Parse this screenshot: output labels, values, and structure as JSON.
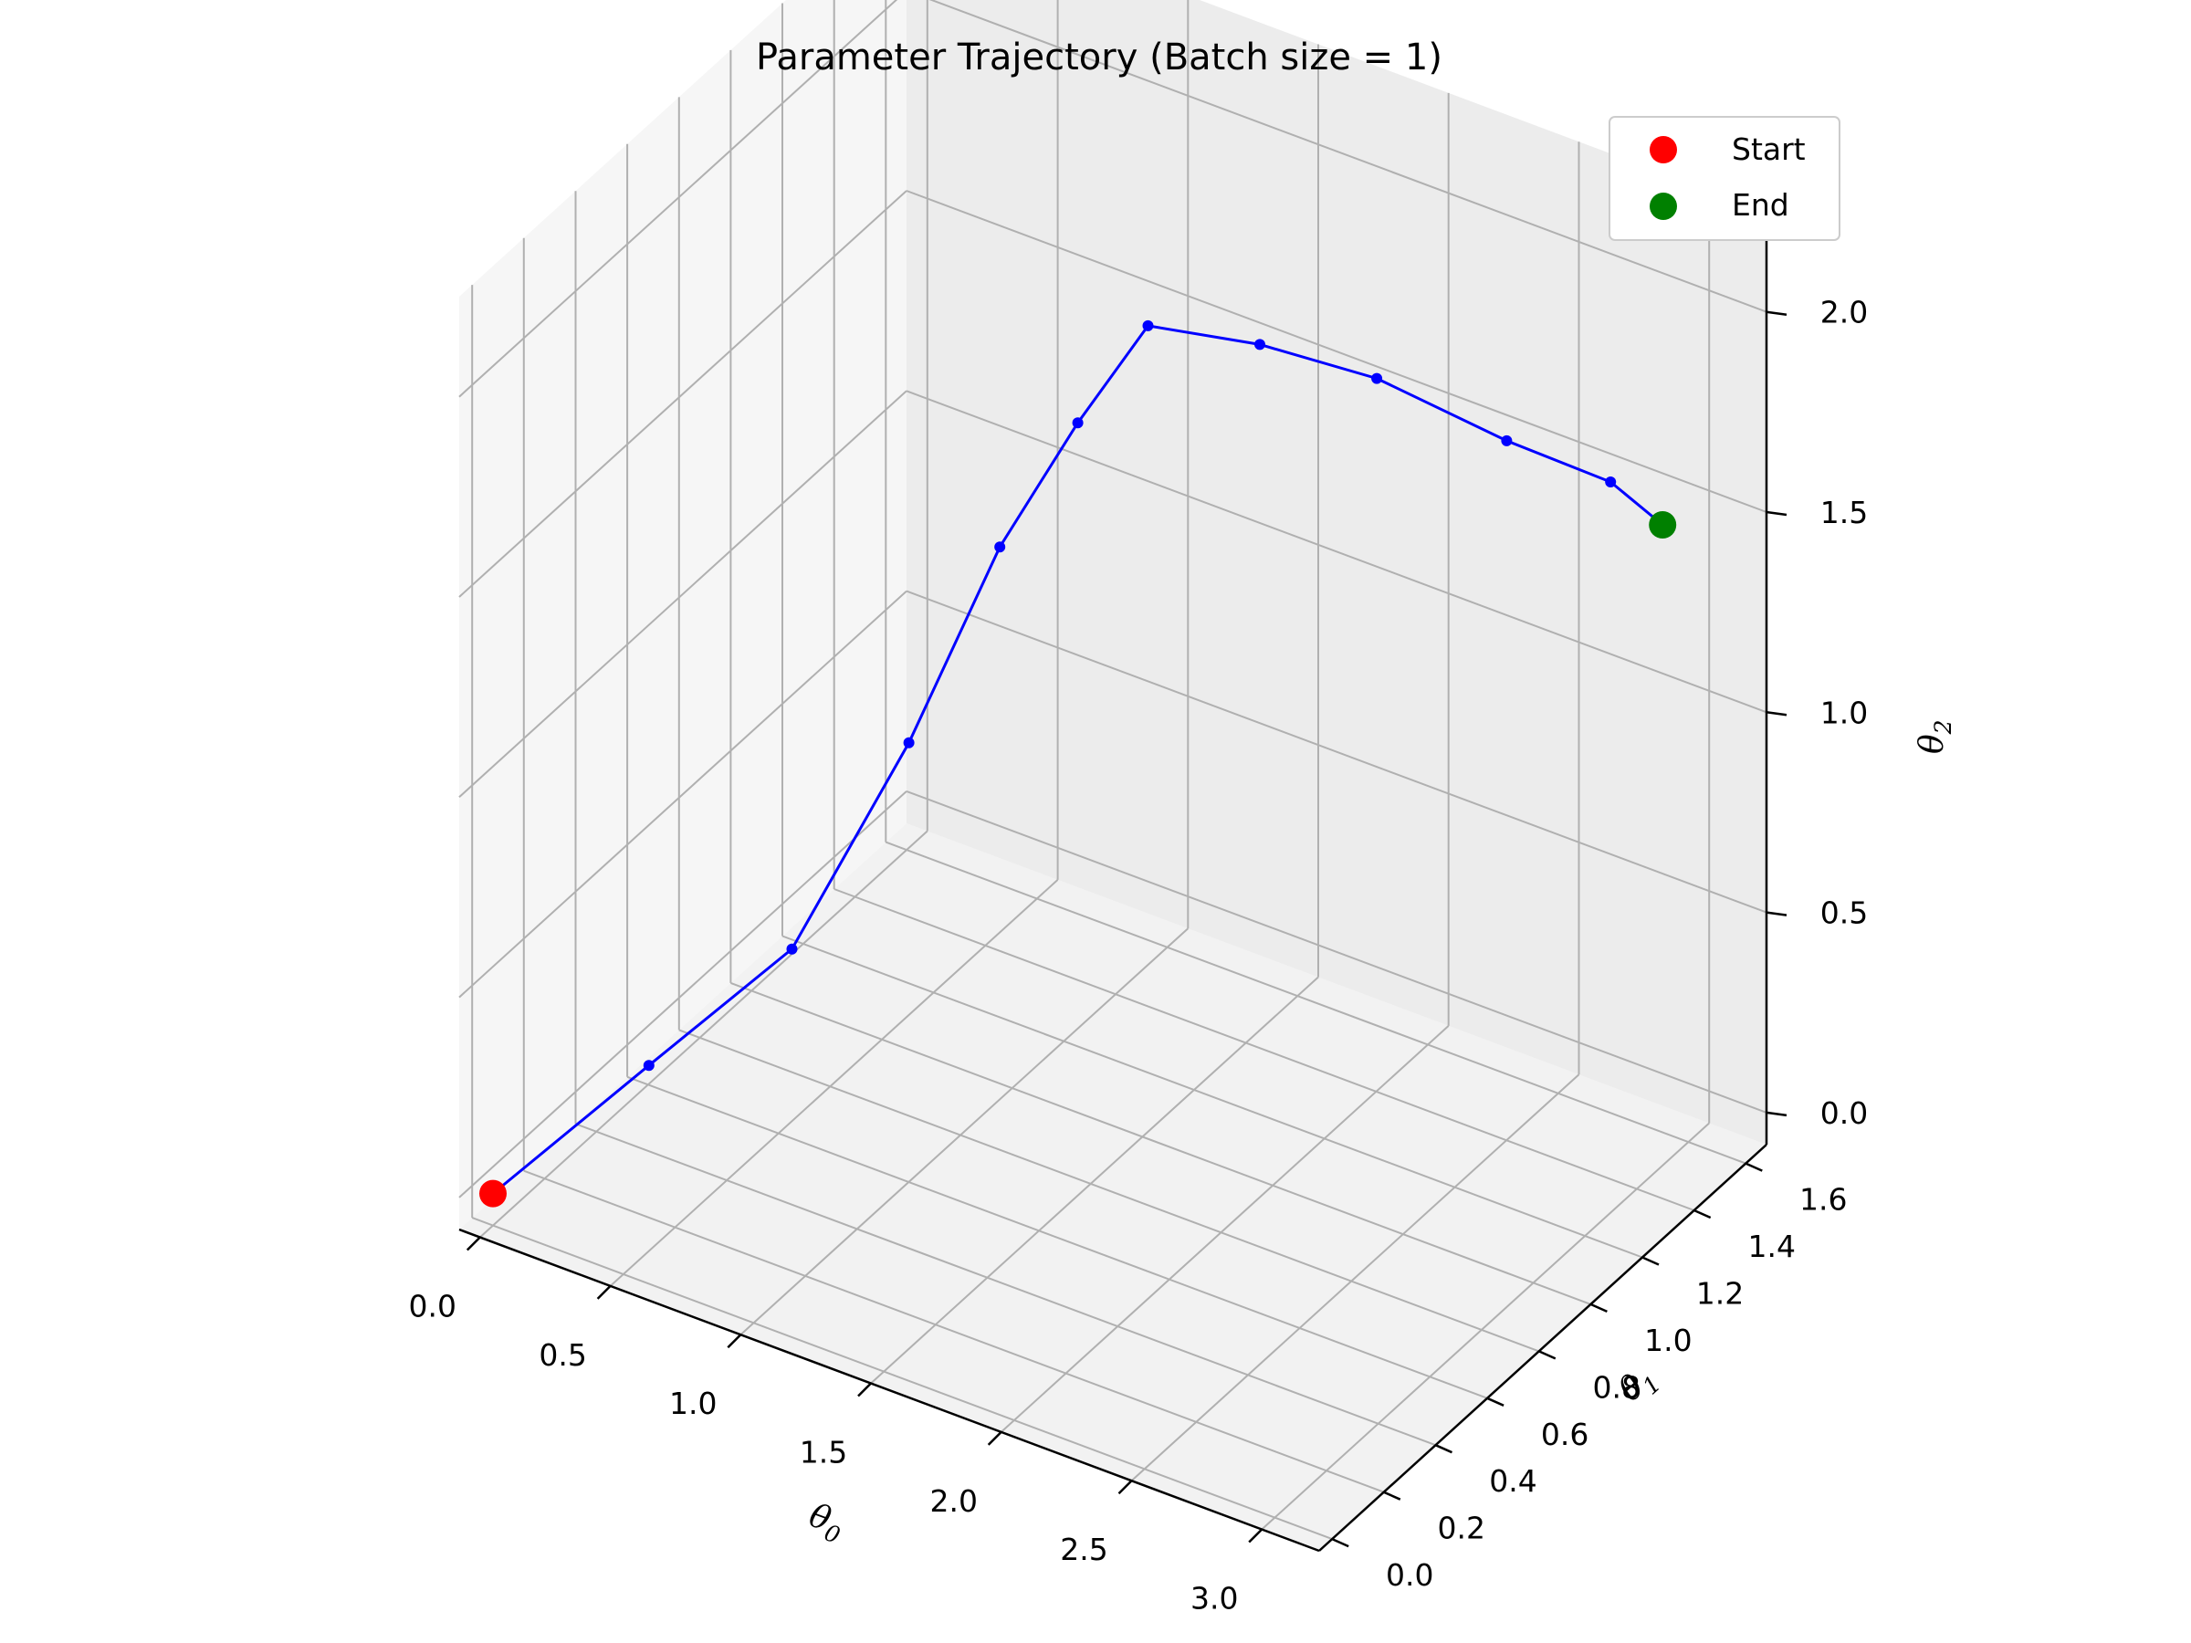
{
  "chart_data": {
    "type": "scatter",
    "title": "Parameter Trajectory (Batch size = 1)",
    "xlabel": "θ",
    "xlabel_sub": "0",
    "ylabel": "θ",
    "ylabel_sub": "1",
    "zlabel": "θ",
    "zlabel_sub": "2",
    "x_ticks": [
      "0.0",
      "0.5",
      "1.0",
      "1.5",
      "2.0",
      "2.5",
      "3.0"
    ],
    "x_tick_values": [
      0,
      0.5,
      1.0,
      1.5,
      2.0,
      2.5,
      3.0
    ],
    "y_ticks": [
      "0.0",
      "0.2",
      "0.4",
      "0.6",
      "0.8",
      "1.0",
      "1.2",
      "1.4",
      "1.6"
    ],
    "y_tick_values": [
      0,
      0.2,
      0.4,
      0.6,
      0.8,
      1.0,
      1.2,
      1.4,
      1.6
    ],
    "z_ticks": [
      "0.0",
      "0.5",
      "1.0",
      "1.5",
      "2.0"
    ],
    "z_tick_values": [
      0,
      0.5,
      1.0,
      1.5,
      2.0
    ],
    "xlim": [
      -0.08,
      3.22
    ],
    "ylim": [
      -0.05,
      1.68
    ],
    "zlim": [
      -0.08,
      2.25
    ],
    "grid": true,
    "legend_position": "top-right",
    "legend": [
      {
        "label": "Start",
        "color": "#ff0000"
      },
      {
        "label": "End",
        "color": "#008000"
      }
    ],
    "trajectory": {
      "color": "#0000ff",
      "path": [
        {
          "x": 0.0,
          "y": 0.0,
          "z": 0.0
        },
        {
          "x": 0.4,
          "y": 0.2,
          "z": 0.3
        },
        {
          "x": 0.8,
          "y": 0.35,
          "z": 0.6
        },
        {
          "x": 1.1,
          "y": 0.5,
          "z": 1.1
        },
        {
          "x": 1.3,
          "y": 0.65,
          "z": 1.55
        },
        {
          "x": 1.5,
          "y": 0.75,
          "z": 1.85
        },
        {
          "x": 1.7,
          "y": 0.82,
          "z": 2.1
        },
        {
          "x": 2.0,
          "y": 0.95,
          "z": 2.05
        },
        {
          "x": 2.3,
          "y": 1.1,
          "z": 1.95
        },
        {
          "x": 2.6,
          "y": 1.3,
          "z": 1.75
        },
        {
          "x": 2.85,
          "y": 1.45,
          "z": 1.62
        },
        {
          "x": 3.0,
          "y": 1.5,
          "z": 1.52
        }
      ]
    },
    "start": {
      "x": 0.0,
      "y": 0.0,
      "z": 0.0,
      "label": "Start"
    },
    "end": {
      "x": 3.0,
      "y": 1.5,
      "z": 1.52,
      "label": "End"
    }
  }
}
